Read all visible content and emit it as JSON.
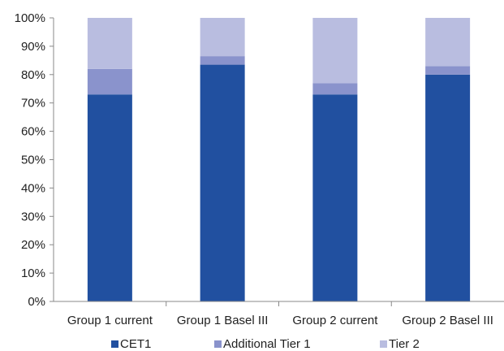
{
  "chart_data": {
    "type": "bar",
    "stacked": true,
    "percent": true,
    "categories": [
      "Group 1 current",
      "Group 1 Basel III",
      "Group 2 current",
      "Group 2 Basel III"
    ],
    "series": [
      {
        "name": "CET1",
        "color": "#2150a0",
        "values": [
          73,
          83.5,
          73,
          80
        ]
      },
      {
        "name": "Additional Tier 1",
        "color": "#8a93cc",
        "values": [
          9,
          3,
          4,
          3
        ]
      },
      {
        "name": "Tier 2",
        "color": "#b9bde0",
        "values": [
          18,
          13.5,
          23,
          17
        ]
      }
    ],
    "ylim": [
      0,
      100
    ],
    "yticks": [
      0,
      10,
      20,
      30,
      40,
      50,
      60,
      70,
      80,
      90,
      100
    ],
    "ytick_labels": [
      "0%",
      "10%",
      "20%",
      "30%",
      "40%",
      "50%",
      "60%",
      "70%",
      "80%",
      "90%",
      "100%"
    ],
    "title": "",
    "xlabel": "",
    "ylabel": "",
    "grid": false,
    "legend_position": "bottom"
  }
}
